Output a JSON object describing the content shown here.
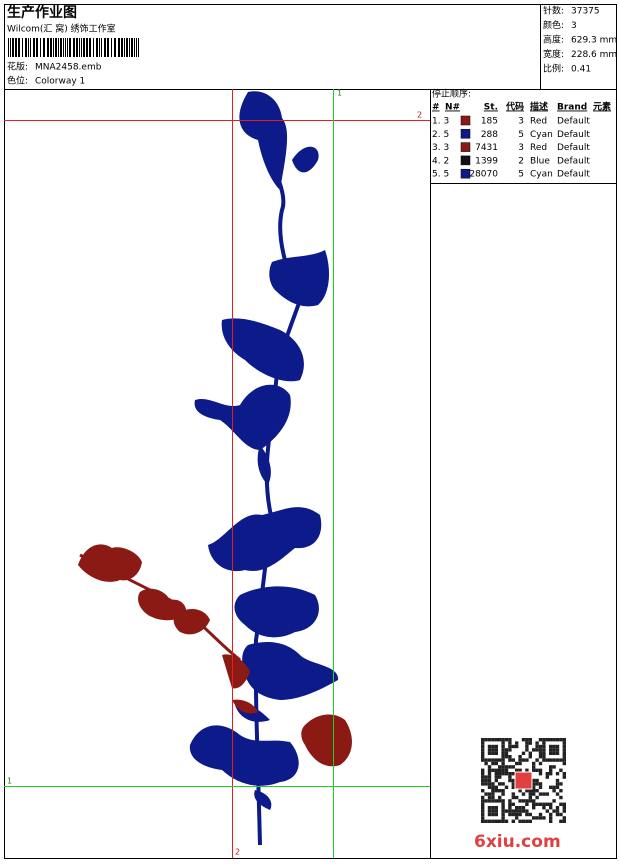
{
  "header": {
    "title": "生产作业图",
    "studio": "Wilcom(汇 窝) 绣饰工作室",
    "design_label": "花版:",
    "design": "MNA2458.emb",
    "colorway_label": "色位:",
    "colorway": "Colorway 1"
  },
  "stats": [
    {
      "label": "针数:",
      "value": 37375
    },
    {
      "label": "颜色:",
      "value": 3
    },
    {
      "label": "高度:",
      "value": "629.3 mm"
    },
    {
      "label": "宽度:",
      "value": "228.6 mm"
    },
    {
      "label": "比例:",
      "value": 0.41
    }
  ],
  "stop_sequence": {
    "title": "停止顺序:",
    "columns": [
      "#",
      "N#",
      "St.",
      "代码",
      "描述",
      "Brand",
      "元素"
    ],
    "rows": [
      {
        "index": "1. 3",
        "color": "#8b1a14",
        "stitches": 185,
        "code": 3,
        "description": "Red",
        "brand": "Default"
      },
      {
        "index": "2. 5",
        "color": "#0c1a8a",
        "stitches": 288,
        "code": 5,
        "description": "Cyan",
        "brand": "Default"
      },
      {
        "index": "3. 3",
        "color": "#8b1a14",
        "stitches": 7431,
        "code": 3,
        "description": "Red",
        "brand": "Default"
      },
      {
        "index": "4. 2",
        "color": "#111111",
        "stitches": 1399,
        "code": 2,
        "description": "Blue",
        "brand": "Default"
      },
      {
        "index": "5. 5",
        "color": "#0c1a8a",
        "stitches": 28070,
        "code": 5,
        "description": "Cyan",
        "brand": "Default"
      }
    ]
  },
  "guides": {
    "green_vertical": "1",
    "red_horizontal": "2",
    "green_horizontal": "1",
    "red_vertical": "2"
  },
  "watermark": "6xiu.com"
}
